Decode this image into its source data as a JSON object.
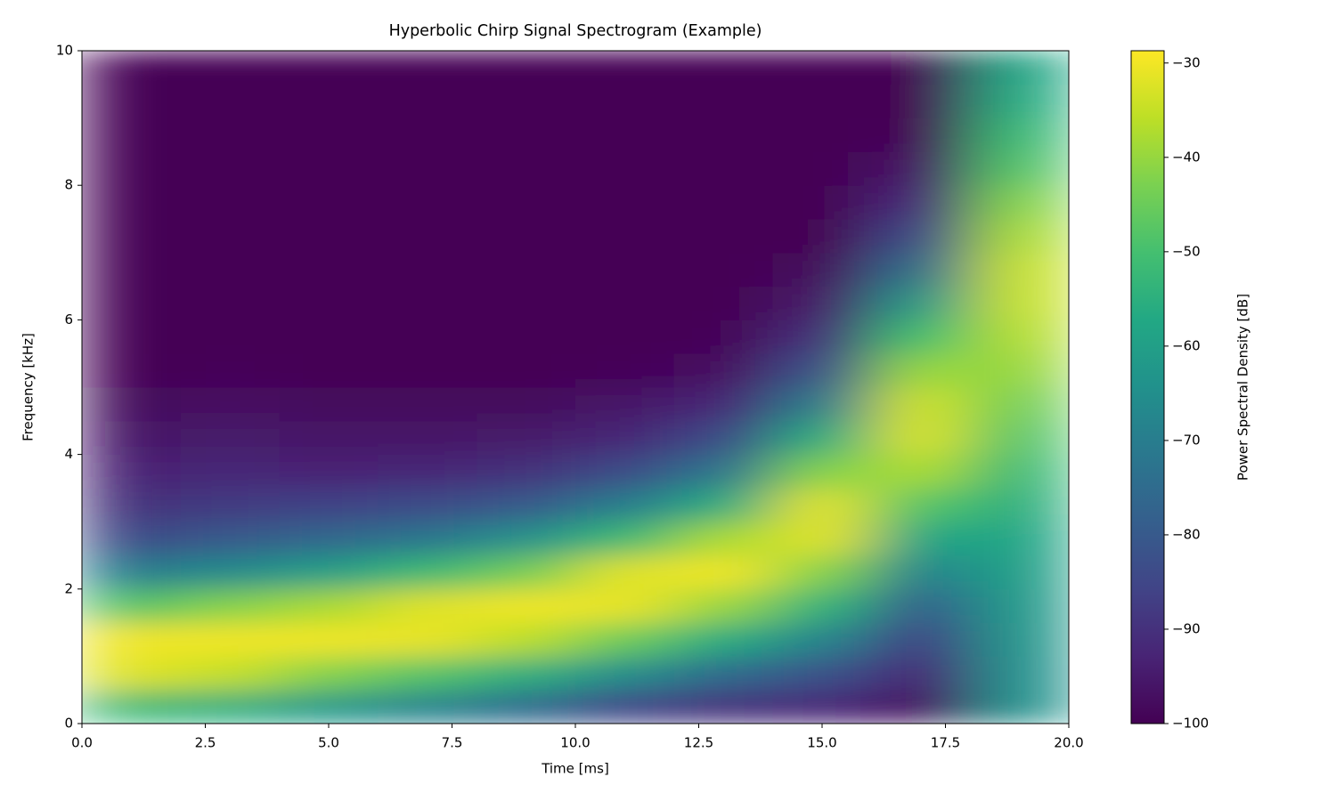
{
  "chart_data": {
    "type": "heatmap",
    "title": "Hyperbolic Chirp Signal Spectrogram (Example)",
    "x_label": "Time [ms]",
    "y_label": "Frequency [kHz]",
    "colorbar_label": "Power Spectral Density [dB]",
    "colormap": "viridis",
    "x": [
      1,
      3,
      5,
      7,
      9,
      11,
      13,
      15,
      17,
      19
    ],
    "y": [
      0.25,
      0.75,
      1.25,
      1.75,
      2.25,
      2.75,
      3.25,
      3.75,
      4.25,
      4.75,
      5.25,
      5.75,
      6.25,
      6.75,
      7.25,
      7.75,
      8.25,
      8.75,
      9.25,
      9.75
    ],
    "z": [
      [
        -52,
        -55,
        -62,
        -68,
        -75,
        -85,
        -90,
        -92,
        -97,
        -64
      ],
      [
        -32,
        -35,
        -42,
        -48,
        -55,
        -65,
        -75,
        -82,
        -92,
        -64
      ],
      [
        -30,
        -30,
        -30,
        -31,
        -36,
        -45,
        -56,
        -68,
        -86,
        -63
      ],
      [
        -48,
        -42,
        -38,
        -32,
        -30,
        -31,
        -40,
        -54,
        -78,
        -62
      ],
      [
        -70,
        -66,
        -60,
        -52,
        -44,
        -32,
        -30,
        -42,
        -68,
        -60
      ],
      [
        -84,
        -80,
        -76,
        -72,
        -64,
        -52,
        -38,
        -32,
        -58,
        -58
      ],
      [
        -90,
        -88,
        -86,
        -84,
        -80,
        -70,
        -56,
        -32,
        -48,
        -55
      ],
      [
        -93,
        -92,
        -93,
        -92,
        -90,
        -84,
        -72,
        -42,
        -38,
        -52
      ],
      [
        -96,
        -95,
        -96,
        -96,
        -95,
        -92,
        -84,
        -56,
        -33,
        -48
      ],
      [
        -98,
        -97,
        -98,
        -98,
        -98,
        -96,
        -92,
        -70,
        -34,
        -44
      ],
      [
        -100,
        -99,
        -100,
        -100,
        -100,
        -99,
        -97,
        -82,
        -40,
        -40
      ],
      [
        -100,
        -100,
        -100,
        -100,
        -100,
        -100,
        -99,
        -90,
        -50,
        -37
      ],
      [
        -100,
        -100,
        -100,
        -100,
        -100,
        -100,
        -100,
        -95,
        -62,
        -35
      ],
      [
        -100,
        -100,
        -100,
        -100,
        -100,
        -100,
        -100,
        -98,
        -74,
        -35
      ],
      [
        -100,
        -100,
        -100,
        -100,
        -100,
        -100,
        -100,
        -100,
        -84,
        -38
      ],
      [
        -100,
        -100,
        -100,
        -100,
        -100,
        -100,
        -100,
        -100,
        -91,
        -42
      ],
      [
        -100,
        -100,
        -100,
        -100,
        -100,
        -100,
        -100,
        -100,
        -96,
        -48
      ],
      [
        -100,
        -100,
        -100,
        -100,
        -100,
        -100,
        -100,
        -100,
        -99,
        -52
      ],
      [
        -100,
        -100,
        -100,
        -100,
        -100,
        -100,
        -100,
        -100,
        -100,
        -56
      ],
      [
        -100,
        -100,
        -100,
        -100,
        -100,
        -100,
        -100,
        -100,
        -100,
        -58
      ]
    ],
    "xlim": [
      0,
      20
    ],
    "xticks": [
      {
        "value": 0,
        "label": "0.0"
      },
      {
        "value": 2.5,
        "label": "2.5"
      },
      {
        "value": 5,
        "label": "5.0"
      },
      {
        "value": 7.5,
        "label": "7.5"
      },
      {
        "value": 10,
        "label": "10.0"
      },
      {
        "value": 12.5,
        "label": "12.5"
      },
      {
        "value": 15,
        "label": "15.0"
      },
      {
        "value": 17.5,
        "label": "17.5"
      },
      {
        "value": 20,
        "label": "20.0"
      }
    ],
    "ylim": [
      0,
      10
    ],
    "yticks": [
      0,
      2,
      4,
      6,
      8,
      10
    ],
    "clim": [
      -100,
      -28.7
    ],
    "cticks": [
      {
        "value": -30,
        "label": "−30"
      },
      {
        "value": -40,
        "label": "−40"
      },
      {
        "value": -50,
        "label": "−50"
      },
      {
        "value": -60,
        "label": "−60"
      },
      {
        "value": -70,
        "label": "−70"
      },
      {
        "value": -80,
        "label": "−80"
      },
      {
        "value": -90,
        "label": "−90"
      },
      {
        "value": -100,
        "label": "−100"
      }
    ]
  }
}
